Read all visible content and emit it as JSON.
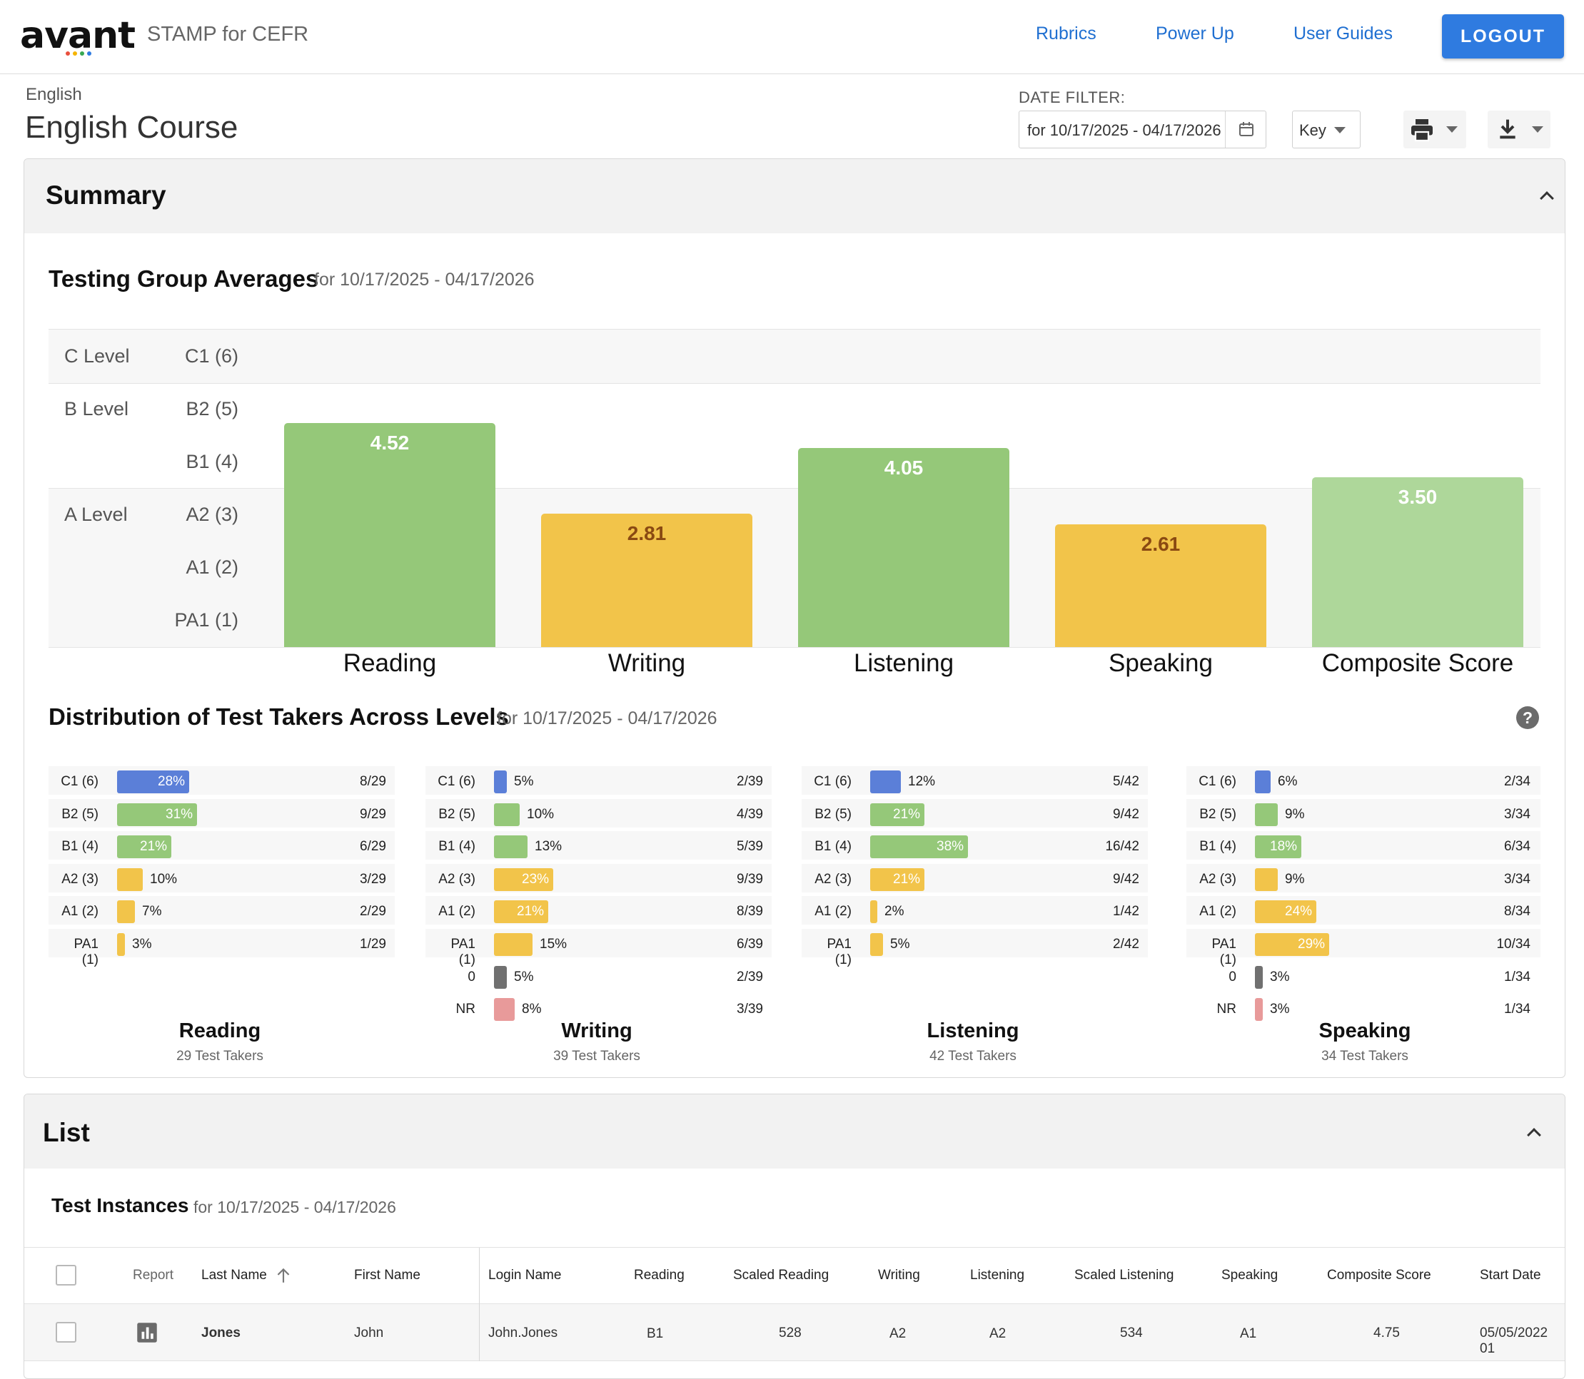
{
  "header": {
    "logo_text": "avant",
    "product_name": "STAMP for CEFR",
    "nav": [
      "Rubrics",
      "Power Up",
      "User Guides"
    ],
    "logout_label": "LOGOUT"
  },
  "page": {
    "breadcrumb": "English",
    "title": "English Course",
    "date_filter_label": "DATE FILTER:",
    "date_filter_value": "for 10/17/2025 - 04/17/2026",
    "key_label": "Key"
  },
  "summary": {
    "panel_title": "Summary",
    "averages_title": "Testing Group Averages",
    "averages_range": "for 10/17/2025 - 04/17/2026",
    "level_groups": [
      "C Level",
      "B Level",
      "A Level"
    ],
    "level_ticks": [
      "C1 (6)",
      "B2 (5)",
      "B1 (4)",
      "A2 (3)",
      "A1 (2)",
      "PA1 (1)"
    ],
    "distribution_title": "Distribution of Test Takers Across Levels",
    "distribution_range": "for 10/17/2025 - 04/17/2026",
    "help_label": "?"
  },
  "chart_data": {
    "type": "bar",
    "categories": [
      "Reading",
      "Writing",
      "Listening",
      "Speaking",
      "Composite Score"
    ],
    "values": [
      4.52,
      2.81,
      4.05,
      2.61,
      3.5
    ],
    "value_labels": [
      "4.52",
      "2.81",
      "4.05",
      "2.61",
      "3.50"
    ],
    "ylim": [
      0,
      6
    ],
    "colors": [
      "#95c879",
      "#f2c44a",
      "#95c879",
      "#f2c44a",
      "#aed79a"
    ],
    "value_label_colors": [
      "#ffffff",
      "#8a4a12",
      "#ffffff",
      "#8a4a12",
      "#ffffff"
    ]
  },
  "distribution": [
    {
      "title": "Reading",
      "subtitle": "29 Test Takers",
      "rows": [
        {
          "label": "C1 (6)",
          "pct": 28,
          "pct_label": "28%",
          "count": "8/29",
          "color": "#5b7fd8"
        },
        {
          "label": "B2 (5)",
          "pct": 31,
          "pct_label": "31%",
          "count": "9/29",
          "color": "#95c879"
        },
        {
          "label": "B1 (4)",
          "pct": 21,
          "pct_label": "21%",
          "count": "6/29",
          "color": "#95c879"
        },
        {
          "label": "A2 (3)",
          "pct": 10,
          "pct_label": "10%",
          "count": "3/29",
          "color": "#f2c44a"
        },
        {
          "label": "A1 (2)",
          "pct": 7,
          "pct_label": "7%",
          "count": "2/29",
          "color": "#f2c44a"
        },
        {
          "label": "PA1 (1)",
          "pct": 3,
          "pct_label": "3%",
          "count": "1/29",
          "color": "#f2c44a"
        }
      ]
    },
    {
      "title": "Writing",
      "subtitle": "39 Test Takers",
      "rows": [
        {
          "label": "C1 (6)",
          "pct": 5,
          "pct_label": "5%",
          "count": "2/39",
          "color": "#5b7fd8"
        },
        {
          "label": "B2 (5)",
          "pct": 10,
          "pct_label": "10%",
          "count": "4/39",
          "color": "#95c879"
        },
        {
          "label": "B1 (4)",
          "pct": 13,
          "pct_label": "13%",
          "count": "5/39",
          "color": "#95c879"
        },
        {
          "label": "A2 (3)",
          "pct": 23,
          "pct_label": "23%",
          "count": "9/39",
          "color": "#f2c44a"
        },
        {
          "label": "A1 (2)",
          "pct": 21,
          "pct_label": "21%",
          "count": "8/39",
          "color": "#f2c44a"
        },
        {
          "label": "PA1 (1)",
          "pct": 15,
          "pct_label": "15%",
          "count": "6/39",
          "color": "#f2c44a"
        },
        {
          "label": "0",
          "pct": 5,
          "pct_label": "5%",
          "count": "2/39",
          "color": "#707070"
        },
        {
          "label": "NR",
          "pct": 8,
          "pct_label": "8%",
          "count": "3/39",
          "color": "#e89a9a"
        }
      ]
    },
    {
      "title": "Listening",
      "subtitle": "42 Test Takers",
      "rows": [
        {
          "label": "C1 (6)",
          "pct": 12,
          "pct_label": "12%",
          "count": "5/42",
          "color": "#5b7fd8"
        },
        {
          "label": "B2 (5)",
          "pct": 21,
          "pct_label": "21%",
          "count": "9/42",
          "color": "#95c879"
        },
        {
          "label": "B1 (4)",
          "pct": 38,
          "pct_label": "38%",
          "count": "16/42",
          "color": "#95c879"
        },
        {
          "label": "A2 (3)",
          "pct": 21,
          "pct_label": "21%",
          "count": "9/42",
          "color": "#f2c44a"
        },
        {
          "label": "A1 (2)",
          "pct": 2,
          "pct_label": "2%",
          "count": "1/42",
          "color": "#f2c44a"
        },
        {
          "label": "PA1 (1)",
          "pct": 5,
          "pct_label": "5%",
          "count": "2/42",
          "color": "#f2c44a"
        }
      ]
    },
    {
      "title": "Speaking",
      "subtitle": "34 Test Takers",
      "rows": [
        {
          "label": "C1 (6)",
          "pct": 6,
          "pct_label": "6%",
          "count": "2/34",
          "color": "#5b7fd8"
        },
        {
          "label": "B2 (5)",
          "pct": 9,
          "pct_label": "9%",
          "count": "3/34",
          "color": "#95c879"
        },
        {
          "label": "B1 (4)",
          "pct": 18,
          "pct_label": "18%",
          "count": "6/34",
          "color": "#95c879"
        },
        {
          "label": "A2 (3)",
          "pct": 9,
          "pct_label": "9%",
          "count": "3/34",
          "color": "#f2c44a"
        },
        {
          "label": "A1 (2)",
          "pct": 24,
          "pct_label": "24%",
          "count": "8/34",
          "color": "#f2c44a"
        },
        {
          "label": "PA1 (1)",
          "pct": 29,
          "pct_label": "29%",
          "count": "10/34",
          "color": "#f2c44a"
        },
        {
          "label": "0",
          "pct": 3,
          "pct_label": "3%",
          "count": "1/34",
          "color": "#707070"
        },
        {
          "label": "NR",
          "pct": 3,
          "pct_label": "3%",
          "count": "1/34",
          "color": "#e89a9a"
        }
      ]
    }
  ],
  "list": {
    "panel_title": "List",
    "instances_title": "Test Instances",
    "instances_range": "for 10/17/2025 - 04/17/2026",
    "columns": [
      "Report",
      "Last Name",
      "First Name",
      "Login Name",
      "Reading",
      "Scaled Reading",
      "Writing",
      "Listening",
      "Scaled Listening",
      "Speaking",
      "Composite Score",
      "Start Date"
    ],
    "sort_icon": "arrow-up-icon",
    "rows": [
      {
        "last_name": "Jones",
        "first_name": "John",
        "login_name": "John.Jones",
        "reading": "B1",
        "scaled_reading": "528",
        "writing": "A2",
        "listening": "A2",
        "scaled_listening": "534",
        "speaking": "A1",
        "composite": "4.75",
        "start_date": "05/05/2022 01"
      }
    ]
  }
}
